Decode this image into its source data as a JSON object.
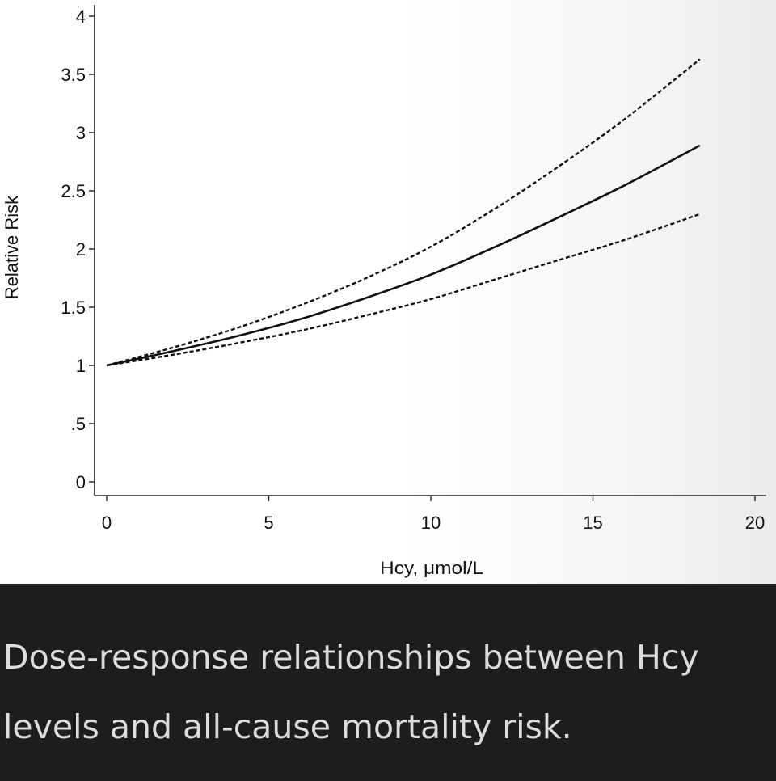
{
  "caption": "Dose-response relationships between Hcy levels and all-cause mortality risk.",
  "chart_data": {
    "type": "line",
    "xlabel": "Hcy, μmol/L",
    "ylabel": "Relative Risk",
    "xlim": [
      0,
      20
    ],
    "ylim": [
      0,
      4
    ],
    "x_ticks": [
      0,
      5,
      10,
      15,
      20
    ],
    "x_tick_labels": [
      "0",
      "5",
      "10",
      "15",
      "20"
    ],
    "y_ticks": [
      0,
      0.5,
      1,
      1.5,
      2,
      2.5,
      3,
      3.5,
      4
    ],
    "y_tick_labels": [
      "0",
      ".5",
      "1",
      "1.5",
      "2",
      "2.5",
      "3",
      "3.5",
      "4"
    ],
    "grid": false,
    "legend": "none",
    "series": [
      {
        "style": "solid",
        "x": [
          0,
          2,
          4,
          6,
          8,
          10,
          12,
          14,
          16,
          18.3
        ],
        "y": [
          1.0,
          1.12,
          1.25,
          1.4,
          1.58,
          1.78,
          2.02,
          2.28,
          2.55,
          2.89
        ]
      },
      {
        "style": "dashed",
        "x": [
          0,
          2,
          4,
          6,
          8,
          10,
          12,
          14,
          16,
          18.3
        ],
        "y": [
          1.0,
          1.15,
          1.32,
          1.52,
          1.75,
          2.02,
          2.35,
          2.72,
          3.12,
          3.63
        ]
      },
      {
        "style": "dashed",
        "x": [
          0,
          2,
          4,
          6,
          8,
          10,
          12,
          14,
          16,
          18.3
        ],
        "y": [
          1.0,
          1.09,
          1.19,
          1.3,
          1.43,
          1.57,
          1.74,
          1.91,
          2.08,
          2.3
        ]
      }
    ]
  }
}
